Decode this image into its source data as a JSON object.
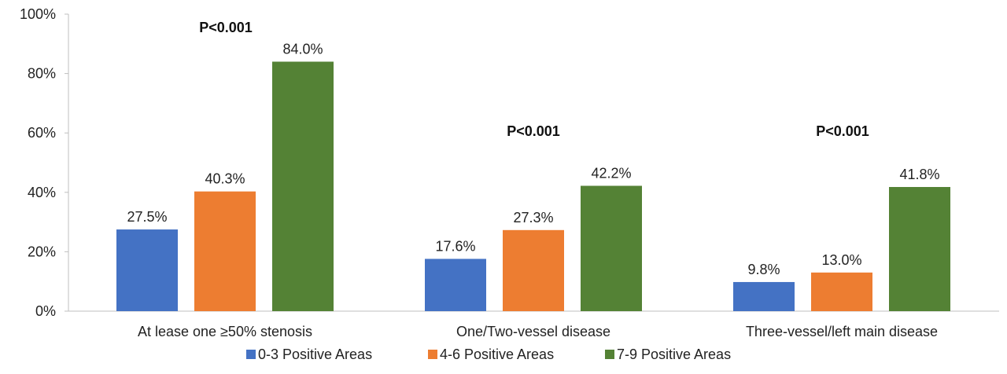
{
  "chart_data": {
    "type": "bar",
    "categories": [
      "At lease one ≥50% stenosis",
      "One/Two-vessel disease",
      "Three-vessel/left main disease"
    ],
    "series": [
      {
        "name": "0-3 Positive Areas",
        "color": "#4472C4",
        "values": [
          27.5,
          17.6,
          9.8
        ],
        "labels": [
          "27.5%",
          "17.6%",
          "9.8%"
        ]
      },
      {
        "name": "4-6 Positive Areas",
        "color": "#ED7D31",
        "values": [
          40.3,
          27.3,
          13.0
        ],
        "labels": [
          "40.3%",
          "27.3%",
          "13.0%"
        ]
      },
      {
        "name": "7-9 Positive Areas",
        "color": "#548235",
        "values": [
          84.0,
          42.2,
          41.8
        ],
        "labels": [
          "84.0%",
          "42.2%",
          "41.8%"
        ]
      }
    ],
    "annotations": [
      "P<0.001",
      "P<0.001",
      "P<0.001"
    ],
    "yticks": [
      {
        "value": 0,
        "label": "0%"
      },
      {
        "value": 20,
        "label": "20%"
      },
      {
        "value": 40,
        "label": "40%"
      },
      {
        "value": 60,
        "label": "60%"
      },
      {
        "value": 80,
        "label": "80%"
      },
      {
        "value": 100,
        "label": "100%"
      }
    ],
    "ylim": [
      0,
      100
    ],
    "grid": false,
    "legend_position": "bottom",
    "title": "",
    "xlabel": "",
    "ylabel": ""
  }
}
